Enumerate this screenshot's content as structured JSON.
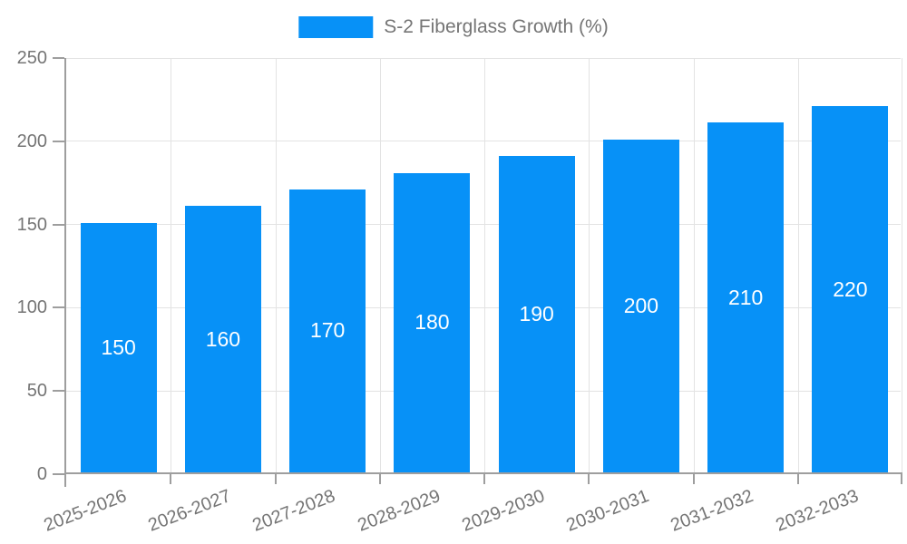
{
  "chart_data": {
    "type": "bar",
    "title": "S-2 Fiberglass Growth (%)",
    "legend": {
      "position": "top",
      "label": "S-2 Fiberglass Growth (%)"
    },
    "categories": [
      "2025-2026",
      "2026-2027",
      "2027-2028",
      "2028-2029",
      "2029-2030",
      "2030-2031",
      "2031-2032",
      "2032-2033"
    ],
    "series": [
      {
        "name": "S-2 Fiberglass Growth (%)",
        "values": [
          150,
          160,
          170,
          180,
          190,
          200,
          210,
          220
        ]
      }
    ],
    "value_labels_shown": true,
    "xlabel": "",
    "ylabel": "",
    "ylim": [
      0,
      250
    ],
    "y_ticks": [
      0,
      50,
      100,
      150,
      200,
      250
    ],
    "grid": true,
    "colors": {
      "bar": "#0791F7",
      "grid_line": "#e3e3e3",
      "axis_line": "#9e9e9e",
      "axis_text": "#757575",
      "value_label": "#ffffff",
      "background": "#ffffff"
    }
  }
}
